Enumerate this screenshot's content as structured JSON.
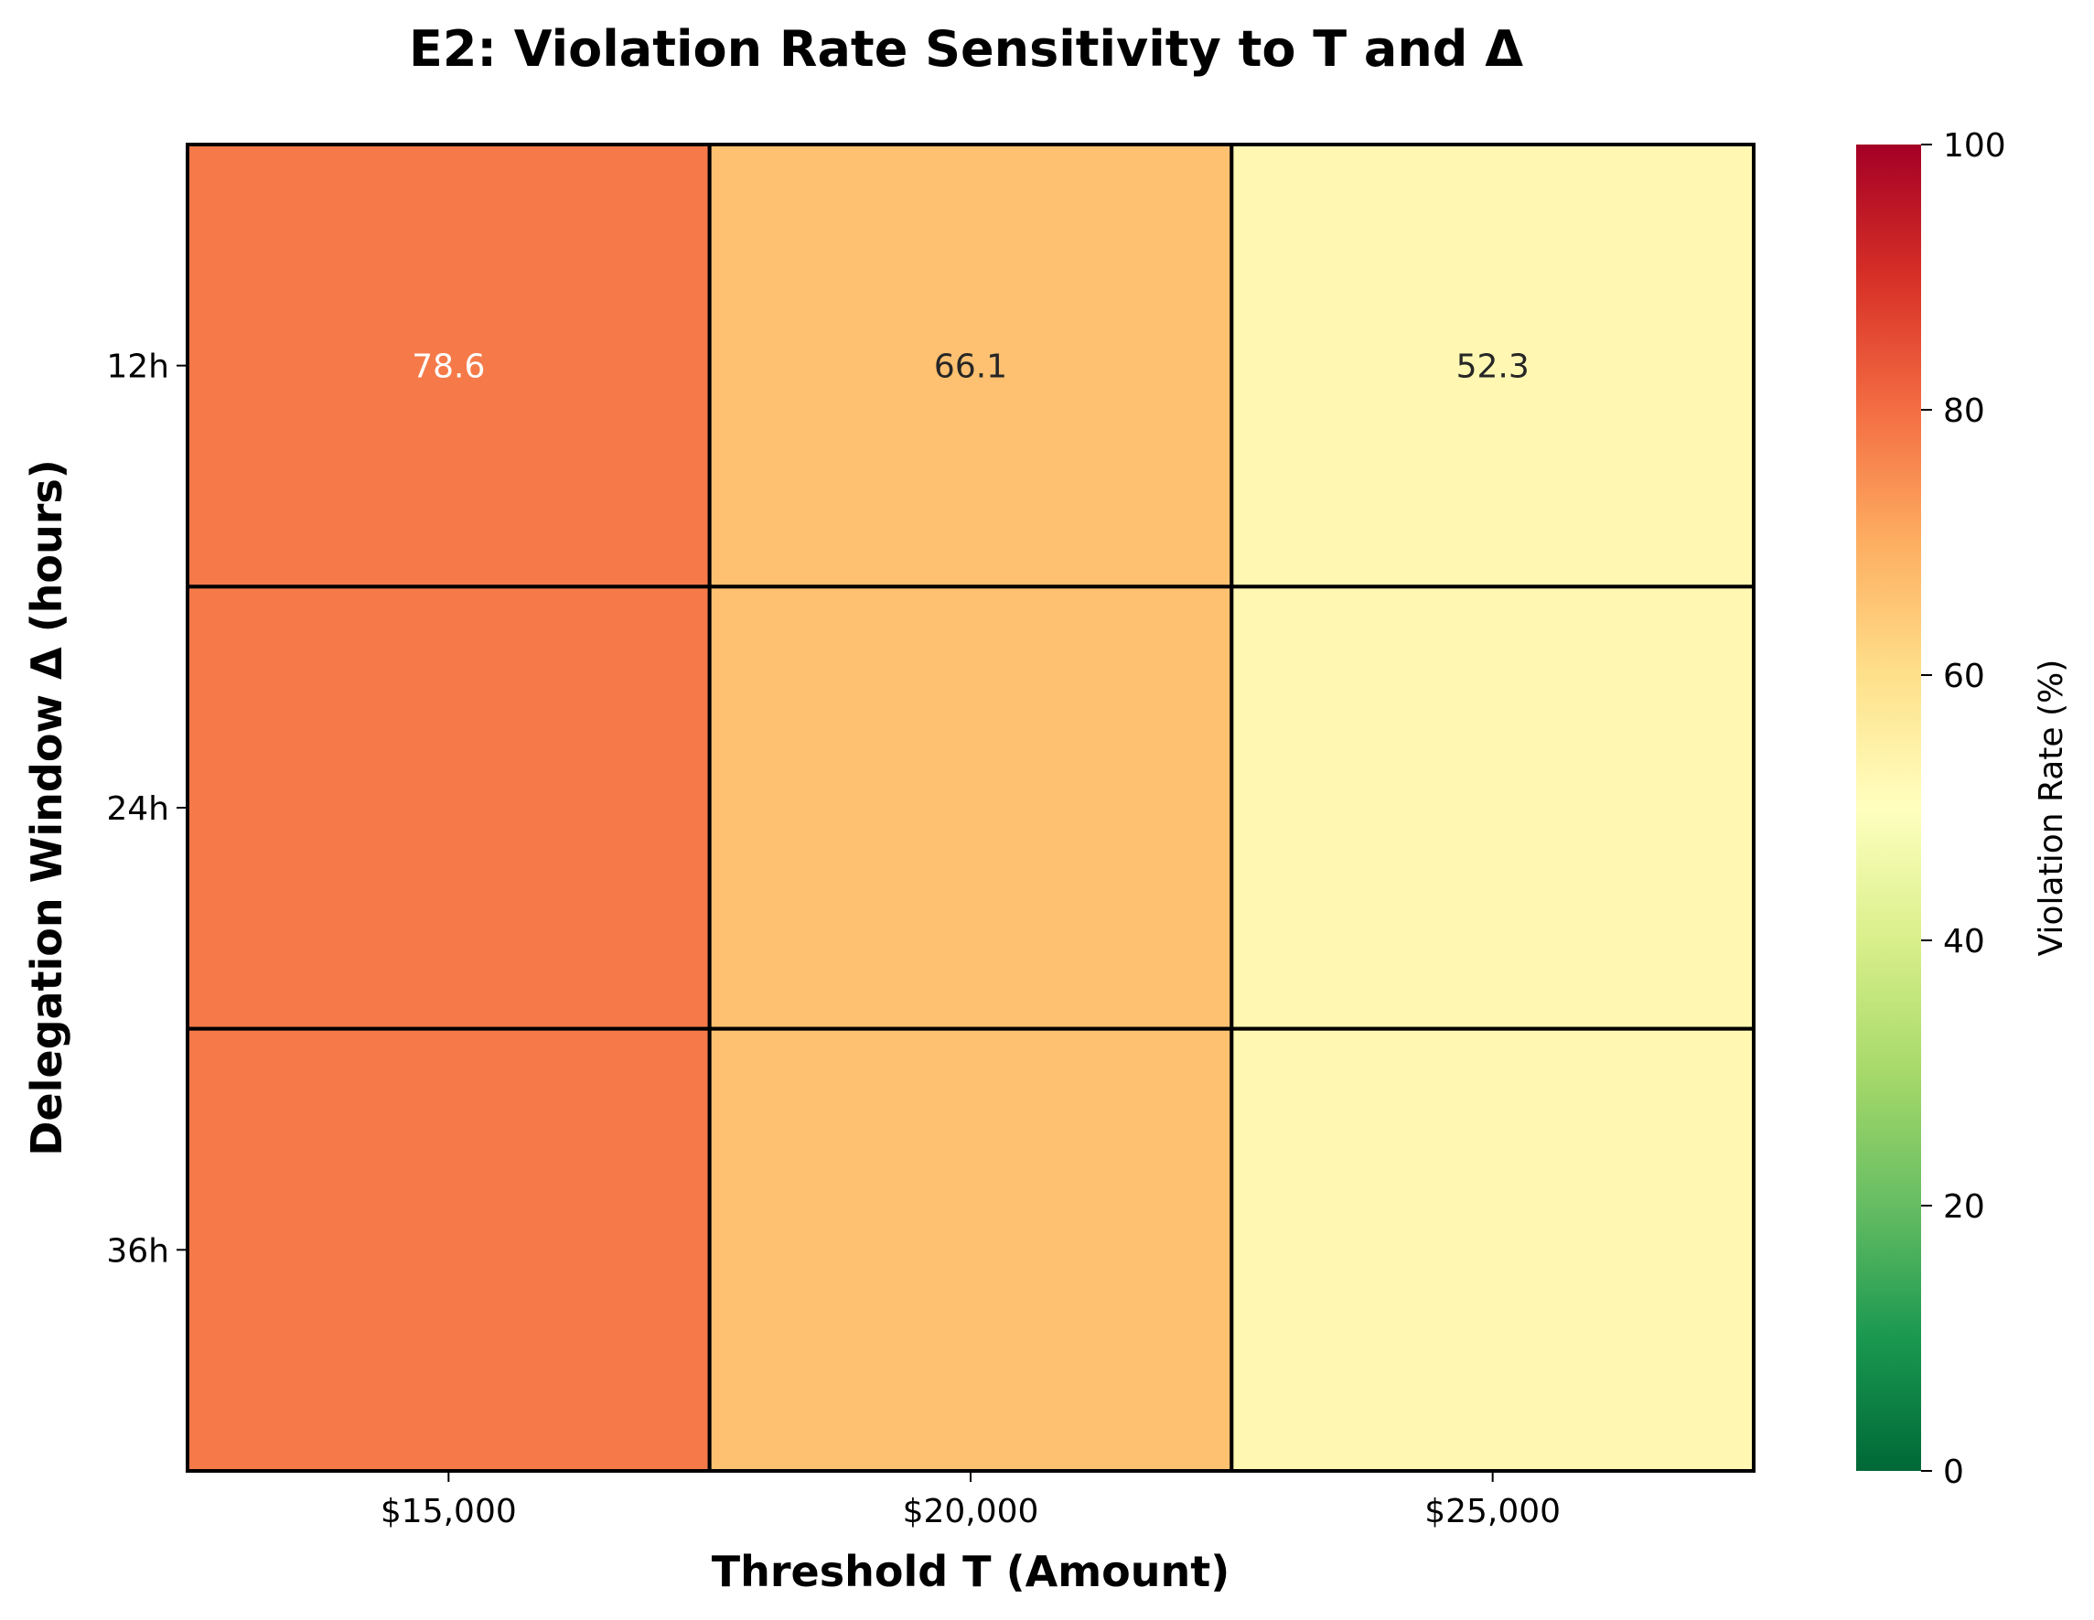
{
  "chart_data": {
    "type": "heatmap",
    "title": "E2: Violation Rate Sensitivity to T and Δ",
    "xlabel": "Threshold T (Amount)",
    "ylabel": "Delegation Window Δ (hours)",
    "x_categories": [
      "$15,000",
      "$20,000",
      "$25,000"
    ],
    "y_categories": [
      "12h",
      "24h",
      "36h"
    ],
    "values": [
      [
        78.6,
        66.1,
        52.3
      ],
      [
        78.6,
        66.1,
        52.3
      ],
      [
        78.6,
        66.1,
        52.3
      ]
    ],
    "annotations": [
      [
        "78.6",
        "66.1",
        "52.3"
      ],
      [
        "",
        "",
        ""
      ],
      [
        "",
        "",
        ""
      ]
    ],
    "colorbar": {
      "label": "Violation Rate (%)",
      "range": [
        0,
        100
      ],
      "ticks": [
        0,
        20,
        40,
        60,
        80,
        100
      ],
      "colormap": "RdYlGn_r"
    },
    "colors": {
      "cell_78_6": "#f67a49",
      "cell_66_1": "#fdc171",
      "cell_52_3": "#fff7b2",
      "gridline": "#000000"
    }
  }
}
